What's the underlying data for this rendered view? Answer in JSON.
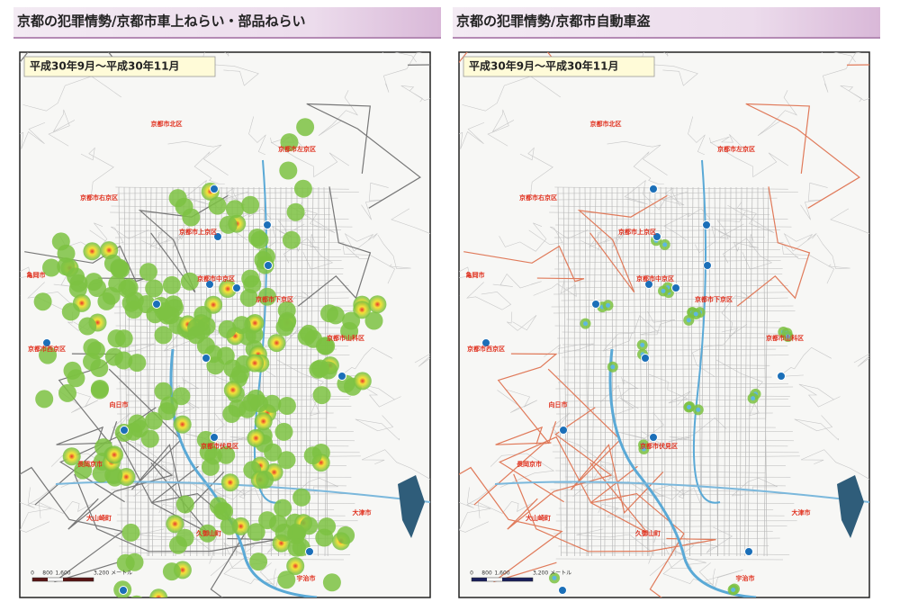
{
  "panels": [
    {
      "title": "京都の犯罪情勢/京都市車上ねらい・部品ねらい",
      "period": "平成30年9月～平成30年11月",
      "places": [
        "京都市北区",
        "京都市左京区",
        "京都市右京区",
        "亀岡市",
        "京都市上京区",
        "京都市中京区",
        "京都市下京区",
        "京都市山科区",
        "京都市西京区",
        "向日市",
        "長岡京市",
        "京都市伏見区",
        "大山崎町",
        "久御山町",
        "大津市",
        "宇治市"
      ],
      "scale": [
        "0",
        "800",
        "1,600",
        "3,200 メートル"
      ]
    },
    {
      "title": "京都の犯罪情勢/京都市自動車盗",
      "period": "平成30年9月～平成30年11月",
      "places": [
        "京都市北区",
        "京都市左京区",
        "京都市右京区",
        "亀岡市",
        "京都市上京区",
        "京都市中京区",
        "京都市下京区",
        "京都市山科区",
        "京都市西京区",
        "向日市",
        "長岡京市",
        "京都市伏見区",
        "大山崎町",
        "久御山町",
        "大津市",
        "宇治市"
      ],
      "scale": [
        "0",
        "800",
        "1,600",
        "3,200 メートル"
      ]
    }
  ]
}
